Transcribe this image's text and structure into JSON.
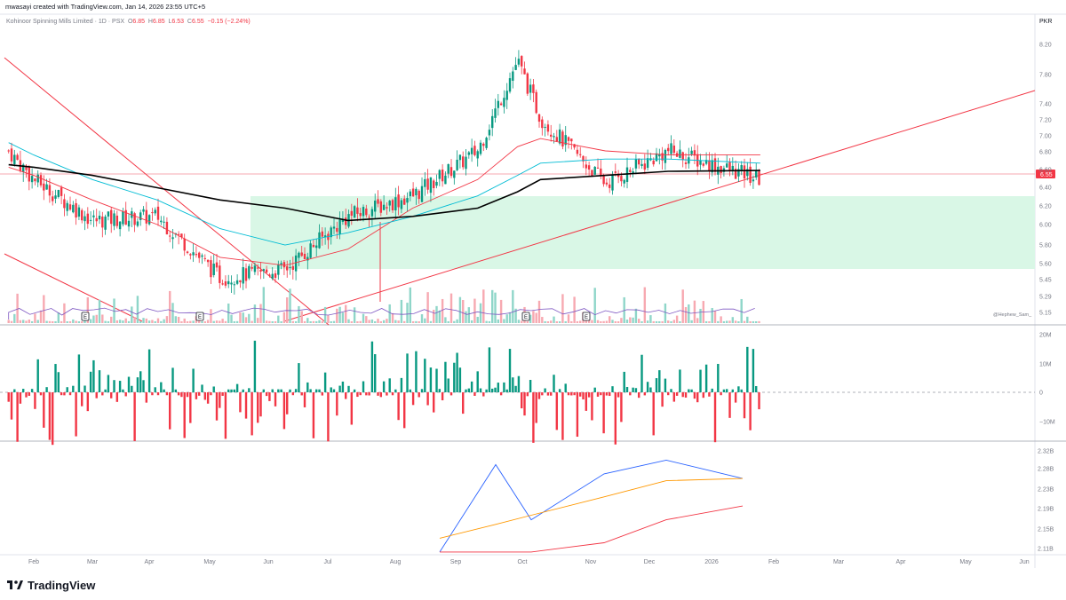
{
  "header": {
    "author_line": "mwasayi created with TradingView.com, Jan 14, 2026 23:55 UTC+5"
  },
  "legend": {
    "symbol": "Kohinoor Spinning Mills Limited · 1D · PSX",
    "open_label": "O",
    "open": "6.85",
    "high_label": "H",
    "high": "6.85",
    "low_label": "L",
    "low": "6.53",
    "close_label": "C",
    "close": "6.55",
    "change": "−0.15 (−2.24%)"
  },
  "currency": "PKR",
  "colors": {
    "up": "#089981",
    "down": "#f23645",
    "ma_fast": "#f23645",
    "ma_mid": "#00bcd4",
    "ma_slow": "#000000",
    "zone": "#d9f7e6",
    "obv": "#2962ff",
    "obv_ma1": "#ff9800",
    "obv_ma2": "#f23645"
  },
  "price_badge": "6.55",
  "watermark": "@Hephew_Sam_",
  "earnings_marker": "E",
  "footer": {
    "brand": "TradingView",
    "logo_icon": "tv-logo-icon"
  },
  "chart_data": [
    {
      "type": "candlestick",
      "title": "Kohinoor Spinning Mills Limited · 1D · PSX",
      "y_ticks": [
        "8.20",
        "7.80",
        "7.40",
        "7.20",
        "7.00",
        "6.80",
        "6.60",
        "6.40",
        "6.20",
        "6.00",
        "5.80",
        "5.60",
        "5.45",
        "5.29",
        "5.15"
      ],
      "last_price": 6.55,
      "support_zone": [
        5.57,
        6.32
      ],
      "x_ticks": [
        "Feb",
        "Mar",
        "Apr",
        "May",
        "Jun",
        "Jul",
        "Aug",
        "Sep",
        "Oct",
        "Nov",
        "Dec",
        "2026",
        "Feb",
        "Mar",
        "Apr",
        "May",
        "Jun"
      ],
      "series": [
        {
          "name": "",
          "kind": "close",
          "x": [
            "2025-01-20",
            "2025-02-01",
            "2025-03-01",
            "2025-04-01",
            "2025-05-01",
            "2025-06-01",
            "2025-07-01",
            "2025-08-01",
            "2025-09-01",
            "2025-09-20",
            "2025-10-01",
            "2025-11-01",
            "2025-12-01",
            "2026-01-14"
          ],
          "values": [
            6.9,
            6.55,
            6.05,
            6.1,
            5.35,
            5.45,
            6.1,
            6.35,
            6.9,
            8.0,
            7.3,
            6.5,
            6.9,
            6.55
          ]
        },
        {
          "name": "",
          "kind": "ma_fast",
          "values": [
            6.7,
            6.6,
            6.3,
            6.0,
            5.6,
            5.5,
            5.7,
            6.2,
            6.55,
            6.95,
            7.05,
            6.9,
            6.85,
            6.85
          ]
        },
        {
          "name": "",
          "kind": "ma_mid",
          "values": [
            7.0,
            6.85,
            6.55,
            6.3,
            5.95,
            5.75,
            5.9,
            6.1,
            6.35,
            6.6,
            6.75,
            6.8,
            6.8,
            6.75
          ]
        },
        {
          "name": "",
          "kind": "ma_slow",
          "values": [
            6.73,
            6.7,
            6.6,
            6.45,
            6.3,
            6.2,
            6.05,
            6.1,
            6.2,
            6.4,
            6.55,
            6.6,
            6.65,
            6.66
          ]
        }
      ]
    },
    {
      "type": "bar",
      "y_ticks": [
        "20M",
        "10M",
        "0",
        "−10M"
      ],
      "series": [
        {
          "name": "",
          "x": [
            "Feb",
            "Mar",
            "Apr",
            "May",
            "Jun",
            "Jul",
            "Aug",
            "Sep",
            "Oct",
            "Nov",
            "Dec",
            "2026"
          ],
          "values": [
            1.0,
            1.5,
            -2.5,
            -13.0,
            14.0,
            -17.0,
            4.0,
            22.0,
            -5.0,
            21.0,
            1.5,
            -9.0
          ]
        }
      ]
    },
    {
      "type": "line",
      "y_ticks": [
        "2.32B",
        "2.28B",
        "2.23B",
        "2.19B",
        "2.15B",
        "2.11B"
      ],
      "series": [
        {
          "name": "",
          "kind": "obv",
          "x": [
            "Aug 25",
            "Sep 20",
            "Oct 10",
            "Nov 10",
            "Dec 20",
            "2026 Jan 14"
          ],
          "values": [
            2.1,
            2.29,
            2.17,
            2.27,
            2.3,
            2.26
          ]
        },
        {
          "name": "",
          "kind": "obv_ma1",
          "values": [
            2.13,
            2.16,
            2.18,
            2.22,
            2.255,
            2.26
          ]
        },
        {
          "name": "",
          "kind": "obv_ma2",
          "values": [
            2.1,
            2.1,
            2.1,
            2.12,
            2.17,
            2.2
          ]
        }
      ]
    }
  ]
}
